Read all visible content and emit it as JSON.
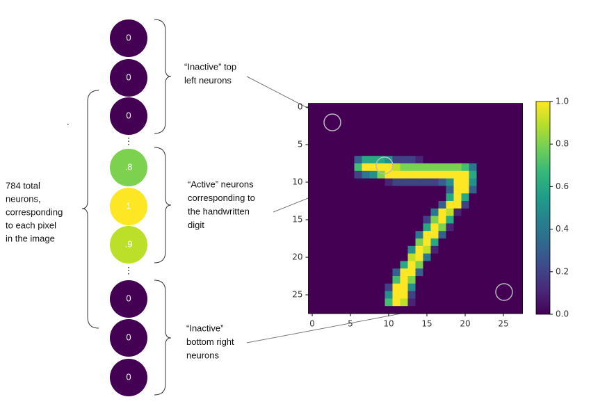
{
  "note": ".",
  "left_label": [
    "784 total",
    "neurons,",
    "corresponding",
    "to each pixel",
    "in the image"
  ],
  "neurons": [
    0,
    0,
    0,
    {
      "value": 0.8,
      "label": ".8"
    },
    1,
    {
      "value": 0.9,
      "label": ".9"
    },
    0,
    0,
    0
  ],
  "ellipsis": "⋮",
  "annotations": [
    {
      "lines": [
        "“Inactive” top",
        "left neurons"
      ]
    },
    {
      "lines": [
        "“Active” neurons",
        "corresponding to",
        "the handwritten",
        "digit"
      ]
    },
    {
      "lines": [
        "“Inactive”",
        "bottom right",
        "neurons"
      ]
    }
  ],
  "chart_data": {
    "type": "heatmap",
    "colormap": "viridis",
    "xlim": [
      -0.5,
      27.5
    ],
    "ylim": [
      27.5,
      -0.5
    ],
    "xticks": [
      0,
      5,
      10,
      15,
      20,
      25
    ],
    "yticks": [
      0,
      5,
      10,
      15,
      20,
      25
    ],
    "clim": [
      0,
      1
    ],
    "colorbar_ticks": [
      {
        "value": 0,
        "label": "0.0"
      },
      {
        "value": 0.2,
        "label": "0.2"
      },
      {
        "value": 0.4,
        "label": "0.4"
      },
      {
        "value": 0.6,
        "label": "0.6"
      },
      {
        "value": 0.8,
        "label": "0.8"
      },
      {
        "value": 1,
        "label": "1.0"
      }
    ],
    "z": [
      [
        0,
        0,
        0,
        0,
        0,
        0,
        0,
        0,
        0,
        0,
        0,
        0,
        0,
        0,
        0,
        0,
        0,
        0,
        0,
        0,
        0,
        0,
        0,
        0,
        0,
        0,
        0,
        0
      ],
      [
        0,
        0,
        0,
        0,
        0,
        0,
        0,
        0,
        0,
        0,
        0,
        0,
        0,
        0,
        0,
        0,
        0,
        0,
        0,
        0,
        0,
        0,
        0,
        0,
        0,
        0,
        0,
        0
      ],
      [
        0,
        0,
        0,
        0,
        0,
        0,
        0,
        0,
        0,
        0,
        0,
        0,
        0,
        0,
        0,
        0,
        0,
        0,
        0,
        0,
        0,
        0,
        0,
        0,
        0,
        0,
        0,
        0
      ],
      [
        0,
        0,
        0,
        0,
        0,
        0,
        0,
        0,
        0,
        0,
        0,
        0,
        0,
        0,
        0,
        0,
        0,
        0,
        0,
        0,
        0,
        0,
        0,
        0,
        0,
        0,
        0,
        0
      ],
      [
        0,
        0,
        0,
        0,
        0,
        0,
        0,
        0,
        0,
        0,
        0,
        0,
        0,
        0,
        0,
        0,
        0,
        0,
        0,
        0,
        0,
        0,
        0,
        0,
        0,
        0,
        0,
        0
      ],
      [
        0,
        0,
        0,
        0,
        0,
        0,
        0,
        0,
        0,
        0,
        0,
        0,
        0,
        0,
        0,
        0,
        0,
        0,
        0,
        0,
        0,
        0,
        0,
        0,
        0,
        0,
        0,
        0
      ],
      [
        0,
        0,
        0,
        0,
        0,
        0,
        0,
        0,
        0,
        0,
        0,
        0,
        0,
        0,
        0,
        0,
        0,
        0,
        0,
        0,
        0,
        0,
        0,
        0,
        0,
        0,
        0,
        0
      ],
      [
        0,
        0,
        0,
        0,
        0,
        0,
        0.3,
        0.6,
        0.6,
        0.6,
        0.5,
        0.2,
        0.2,
        0.2,
        0.1,
        0,
        0,
        0,
        0,
        0,
        0,
        0,
        0,
        0,
        0,
        0,
        0,
        0
      ],
      [
        0,
        0,
        0,
        0,
        0,
        0,
        0.7,
        1,
        1,
        1,
        1,
        0.9,
        0.8,
        0.8,
        0.8,
        0.8,
        0.8,
        0.8,
        0.8,
        0.8,
        0.7,
        0.4,
        0,
        0,
        0,
        0,
        0,
        0
      ],
      [
        0,
        0,
        0,
        0,
        0,
        0,
        0.2,
        0.4,
        0.5,
        0.8,
        1,
        1,
        1,
        1,
        1,
        1,
        1,
        1,
        1,
        1,
        1,
        0.6,
        0,
        0,
        0,
        0,
        0,
        0
      ],
      [
        0,
        0,
        0,
        0,
        0,
        0,
        0,
        0,
        0,
        0,
        0.1,
        0.2,
        0.2,
        0.2,
        0.2,
        0.2,
        0.2,
        0.3,
        0.5,
        1,
        1,
        0.5,
        0,
        0,
        0,
        0,
        0,
        0
      ],
      [
        0,
        0,
        0,
        0,
        0,
        0,
        0,
        0,
        0,
        0,
        0,
        0,
        0,
        0,
        0,
        0,
        0,
        0,
        0.3,
        1,
        1,
        0.3,
        0,
        0,
        0,
        0,
        0,
        0
      ],
      [
        0,
        0,
        0,
        0,
        0,
        0,
        0,
        0,
        0,
        0,
        0,
        0,
        0,
        0,
        0,
        0,
        0,
        0,
        0.6,
        1,
        0.6,
        0,
        0,
        0,
        0,
        0,
        0,
        0
      ],
      [
        0,
        0,
        0,
        0,
        0,
        0,
        0,
        0,
        0,
        0,
        0,
        0,
        0,
        0,
        0,
        0,
        0,
        0.3,
        1,
        1,
        0.2,
        0,
        0,
        0,
        0,
        0,
        0,
        0
      ],
      [
        0,
        0,
        0,
        0,
        0,
        0,
        0,
        0,
        0,
        0,
        0,
        0,
        0,
        0,
        0,
        0,
        0.4,
        1,
        0.9,
        0.1,
        0,
        0,
        0,
        0,
        0,
        0,
        0,
        0
      ],
      [
        0,
        0,
        0,
        0,
        0,
        0,
        0,
        0,
        0,
        0,
        0,
        0,
        0,
        0,
        0,
        0.2,
        0.8,
        1,
        0.6,
        0,
        0,
        0,
        0,
        0,
        0,
        0,
        0,
        0
      ],
      [
        0,
        0,
        0,
        0,
        0,
        0,
        0,
        0,
        0,
        0,
        0,
        0,
        0,
        0,
        0,
        0.6,
        1,
        0.8,
        0.1,
        0,
        0,
        0,
        0,
        0,
        0,
        0,
        0,
        0
      ],
      [
        0,
        0,
        0,
        0,
        0,
        0,
        0,
        0,
        0,
        0,
        0,
        0,
        0,
        0,
        0.4,
        1,
        1,
        0.3,
        0,
        0,
        0,
        0,
        0,
        0,
        0,
        0,
        0,
        0
      ],
      [
        0,
        0,
        0,
        0,
        0,
        0,
        0,
        0,
        0,
        0,
        0,
        0,
        0,
        0,
        0.8,
        1,
        0.6,
        0,
        0,
        0,
        0,
        0,
        0,
        0,
        0,
        0,
        0,
        0
      ],
      [
        0,
        0,
        0,
        0,
        0,
        0,
        0,
        0,
        0,
        0,
        0,
        0,
        0,
        0.5,
        1,
        0.9,
        0.1,
        0,
        0,
        0,
        0,
        0,
        0,
        0,
        0,
        0,
        0,
        0
      ],
      [
        0,
        0,
        0,
        0,
        0,
        0,
        0,
        0,
        0,
        0,
        0,
        0,
        0,
        0.9,
        1,
        0.4,
        0,
        0,
        0,
        0,
        0,
        0,
        0,
        0,
        0,
        0,
        0,
        0
      ],
      [
        0,
        0,
        0,
        0,
        0,
        0,
        0,
        0,
        0,
        0,
        0,
        0,
        0.6,
        1,
        0.8,
        0,
        0,
        0,
        0,
        0,
        0,
        0,
        0,
        0,
        0,
        0,
        0,
        0
      ],
      [
        0,
        0,
        0,
        0,
        0,
        0,
        0,
        0,
        0,
        0,
        0,
        0.3,
        1,
        1,
        0.3,
        0,
        0,
        0,
        0,
        0,
        0,
        0,
        0,
        0,
        0,
        0,
        0,
        0
      ],
      [
        0,
        0,
        0,
        0,
        0,
        0,
        0,
        0,
        0,
        0,
        0,
        0.7,
        1,
        0.8,
        0,
        0,
        0,
        0,
        0,
        0,
        0,
        0,
        0,
        0,
        0,
        0,
        0,
        0
      ],
      [
        0,
        0,
        0,
        0,
        0,
        0,
        0,
        0,
        0,
        0,
        0.2,
        1,
        1,
        0.5,
        0,
        0,
        0,
        0,
        0,
        0,
        0,
        0,
        0,
        0,
        0,
        0,
        0,
        0
      ],
      [
        0,
        0,
        0,
        0,
        0,
        0,
        0,
        0,
        0,
        0,
        0.5,
        1,
        1,
        0.2,
        0,
        0,
        0,
        0,
        0,
        0,
        0,
        0,
        0,
        0,
        0,
        0,
        0,
        0
      ],
      [
        0,
        0,
        0,
        0,
        0,
        0,
        0,
        0,
        0,
        0,
        0.7,
        1,
        0.9,
        0.1,
        0,
        0,
        0,
        0,
        0,
        0,
        0,
        0,
        0,
        0,
        0,
        0,
        0,
        0
      ],
      [
        0,
        0,
        0,
        0,
        0,
        0,
        0,
        0,
        0,
        0,
        0,
        0,
        0,
        0,
        0,
        0,
        0,
        0,
        0,
        0,
        0,
        0,
        0,
        0,
        0,
        0,
        0,
        0
      ]
    ]
  }
}
